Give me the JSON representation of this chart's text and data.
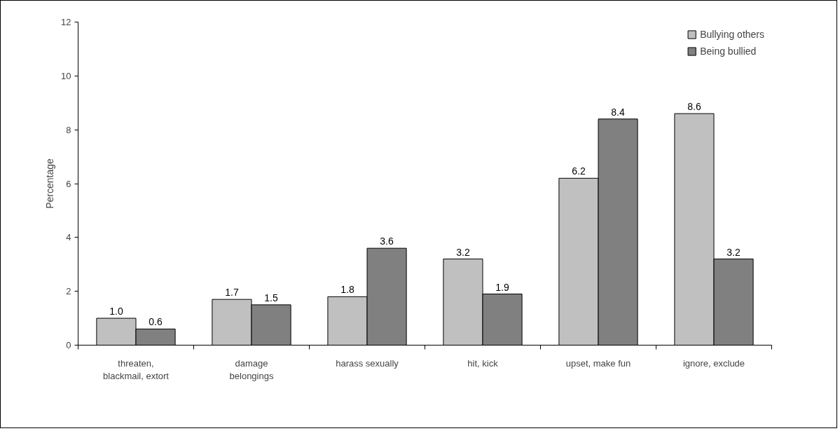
{
  "chart_data": {
    "type": "bar",
    "ylabel": "Percentage",
    "categories": [
      "threaten,\nblackmail, extort",
      "damage\nbelongings",
      "harass sexually",
      "hit, kick",
      "upset, make fun",
      "ignore, exclude"
    ],
    "series": [
      {
        "name": "Bullying others",
        "color": "#c0c0c0",
        "values": [
          1.0,
          1.7,
          1.8,
          3.2,
          6.2,
          8.6
        ],
        "value_labels": [
          "1.0",
          "1.7",
          "1.8",
          "3.2",
          "6.2",
          "8.6"
        ]
      },
      {
        "name": "Being bullied",
        "color": "#808080",
        "values": [
          0.6,
          1.5,
          3.6,
          1.9,
          8.4,
          3.2
        ],
        "value_labels": [
          "0.6",
          "1.5",
          "3.6",
          "1.9",
          "8.4",
          "3.2"
        ]
      }
    ],
    "ylim": [
      0,
      12
    ],
    "yticks": [
      0,
      2,
      4,
      6,
      8,
      10,
      12
    ],
    "grid": false,
    "legend": "top right"
  }
}
